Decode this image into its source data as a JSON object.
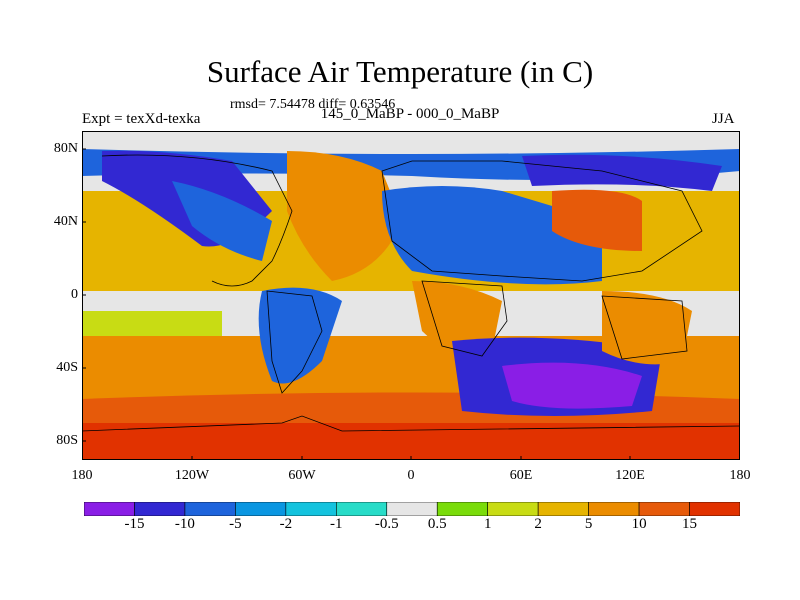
{
  "header": {
    "title": "Surface Air Temperature (in C)",
    "stats": "rmsd= 7.54478  diff= 0.63546",
    "experiment": "Expt = texXd-texka",
    "period": "145_0_MaBP - 000_0_MaBP",
    "season": "JJA"
  },
  "axes": {
    "y_labels": [
      "80N",
      "40N",
      "0",
      "40S",
      "80S"
    ],
    "x_labels": [
      "180",
      "120W",
      "60W",
      "0",
      "60E",
      "120E",
      "180"
    ]
  },
  "colorbar": {
    "colors": [
      "#8a1ee6",
      "#3228d2",
      "#1e64dc",
      "#0a96e1",
      "#14c3de",
      "#28dcc8",
      "#e6e6e6",
      "#7adc0a",
      "#c8dc14",
      "#e6b400",
      "#eb8c00",
      "#e65a0a",
      "#e13200"
    ],
    "labels": [
      "-15",
      "-10",
      "-5",
      "-2",
      "-1",
      "-0.5",
      "0.5",
      "1",
      "2",
      "5",
      "10",
      "15"
    ]
  }
}
